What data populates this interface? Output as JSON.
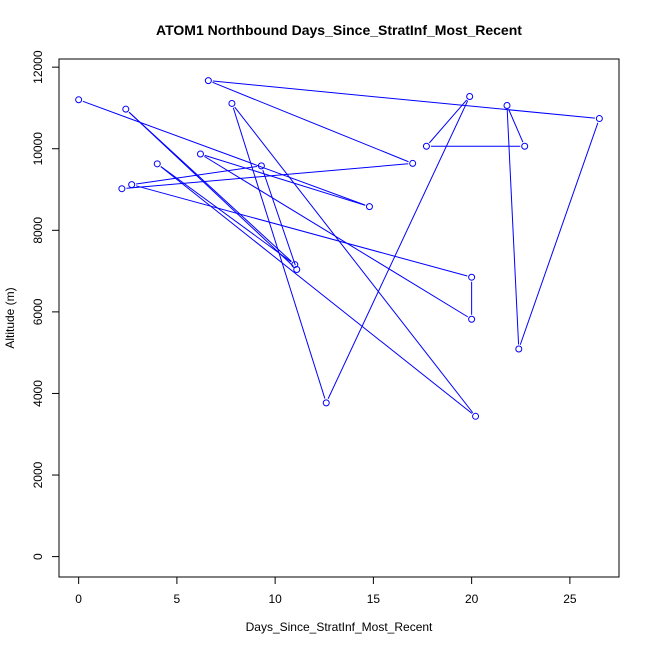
{
  "chart_data": {
    "type": "line",
    "title": "ATOM1 Northbound Days_Since_StratInf_Most_Recent",
    "xlabel": "Days_Since_StratInf_Most_Recent",
    "ylabel": "Altitude (m)",
    "xlim": [
      -1,
      27.5
    ],
    "ylim": [
      -500,
      12200
    ],
    "xticks": [
      0,
      5,
      10,
      15,
      20,
      25
    ],
    "yticks": [
      0,
      2000,
      4000,
      6000,
      8000,
      10000,
      12000
    ],
    "grid": false,
    "color": "#0000ff",
    "series": [
      {
        "x": [
          0.0,
          14.8,
          6.2,
          20.0,
          20.0,
          2.7,
          9.3,
          11.1,
          2.4,
          11.0,
          4.0,
          20.2,
          7.8,
          12.6,
          19.9,
          17.7,
          22.7,
          21.8,
          22.4,
          26.5,
          6.6,
          17.0,
          2.2
        ],
        "y": [
          11200,
          8580,
          9870,
          5820,
          6850,
          9120,
          9580,
          7040,
          10970,
          7160,
          9630,
          3440,
          11110,
          3770,
          11280,
          10060,
          10060,
          11060,
          5090,
          10740,
          11670,
          9640,
          9020
        ]
      }
    ]
  }
}
